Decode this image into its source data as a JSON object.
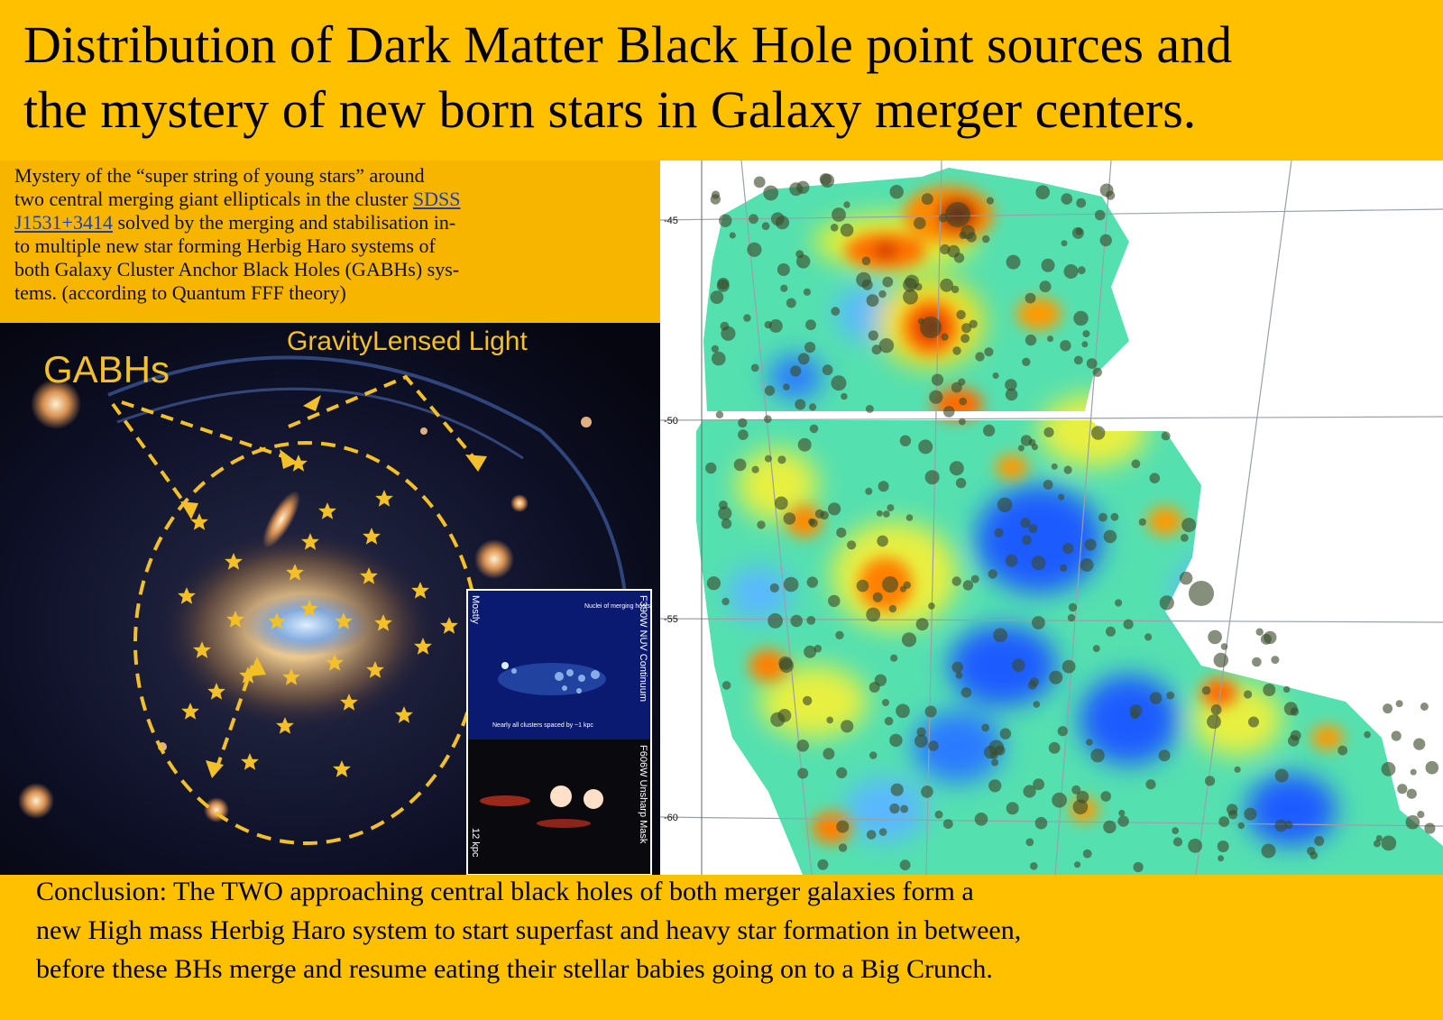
{
  "title": {
    "line1": "Distribution of Dark Matter Black Hole point sources and",
    "line2": "the mystery of new born stars in Galaxy merger centers."
  },
  "caption": {
    "line1": "Mystery of the “super string of young stars” around",
    "line2_pre": "two central merging giant ellipticals in the cluster ",
    "link1": "SDSS",
    "link2": "J1531+3414",
    "line3_post": " solved by the merging and stabilisation in-",
    "line4": "to multiple new star forming Herbig Haro systems of",
    "line5": "both Galaxy Cluster Anchor Black Holes (GABHs) sys-",
    "line6": "tems. (according to Quantum FFF theory)"
  },
  "galaxy": {
    "label_gabhs": "GABHs",
    "label_lensed": "GravityLensed Light",
    "inset_top_label": "F390W NUV Continuum",
    "inset_bottom_label": "F606W Unsharp Mask",
    "inset_left_label": "Mostly",
    "inset_note1": "Nuclei of merging hosts",
    "inset_note2": "Nearly all clusters spaced by ~1 kpc",
    "inset_scale": "12 kpc"
  },
  "map": {
    "y_ticks": [
      "-45",
      "-50",
      "-55",
      "-60"
    ],
    "colors": {
      "low": "#1a5cff",
      "mid": "#49e0c8",
      "high": "#ff8a00",
      "peak": "#b00000"
    }
  },
  "conclusion": {
    "line1": "Conclusion:  The TWO approaching central black holes of both merger galaxies form a",
    "line2": "new High mass Herbig Haro system to start superfast and heavy star formation in between,",
    "line3": "before these BHs merge and resume eating their stellar babies going on to a Big Crunch."
  }
}
